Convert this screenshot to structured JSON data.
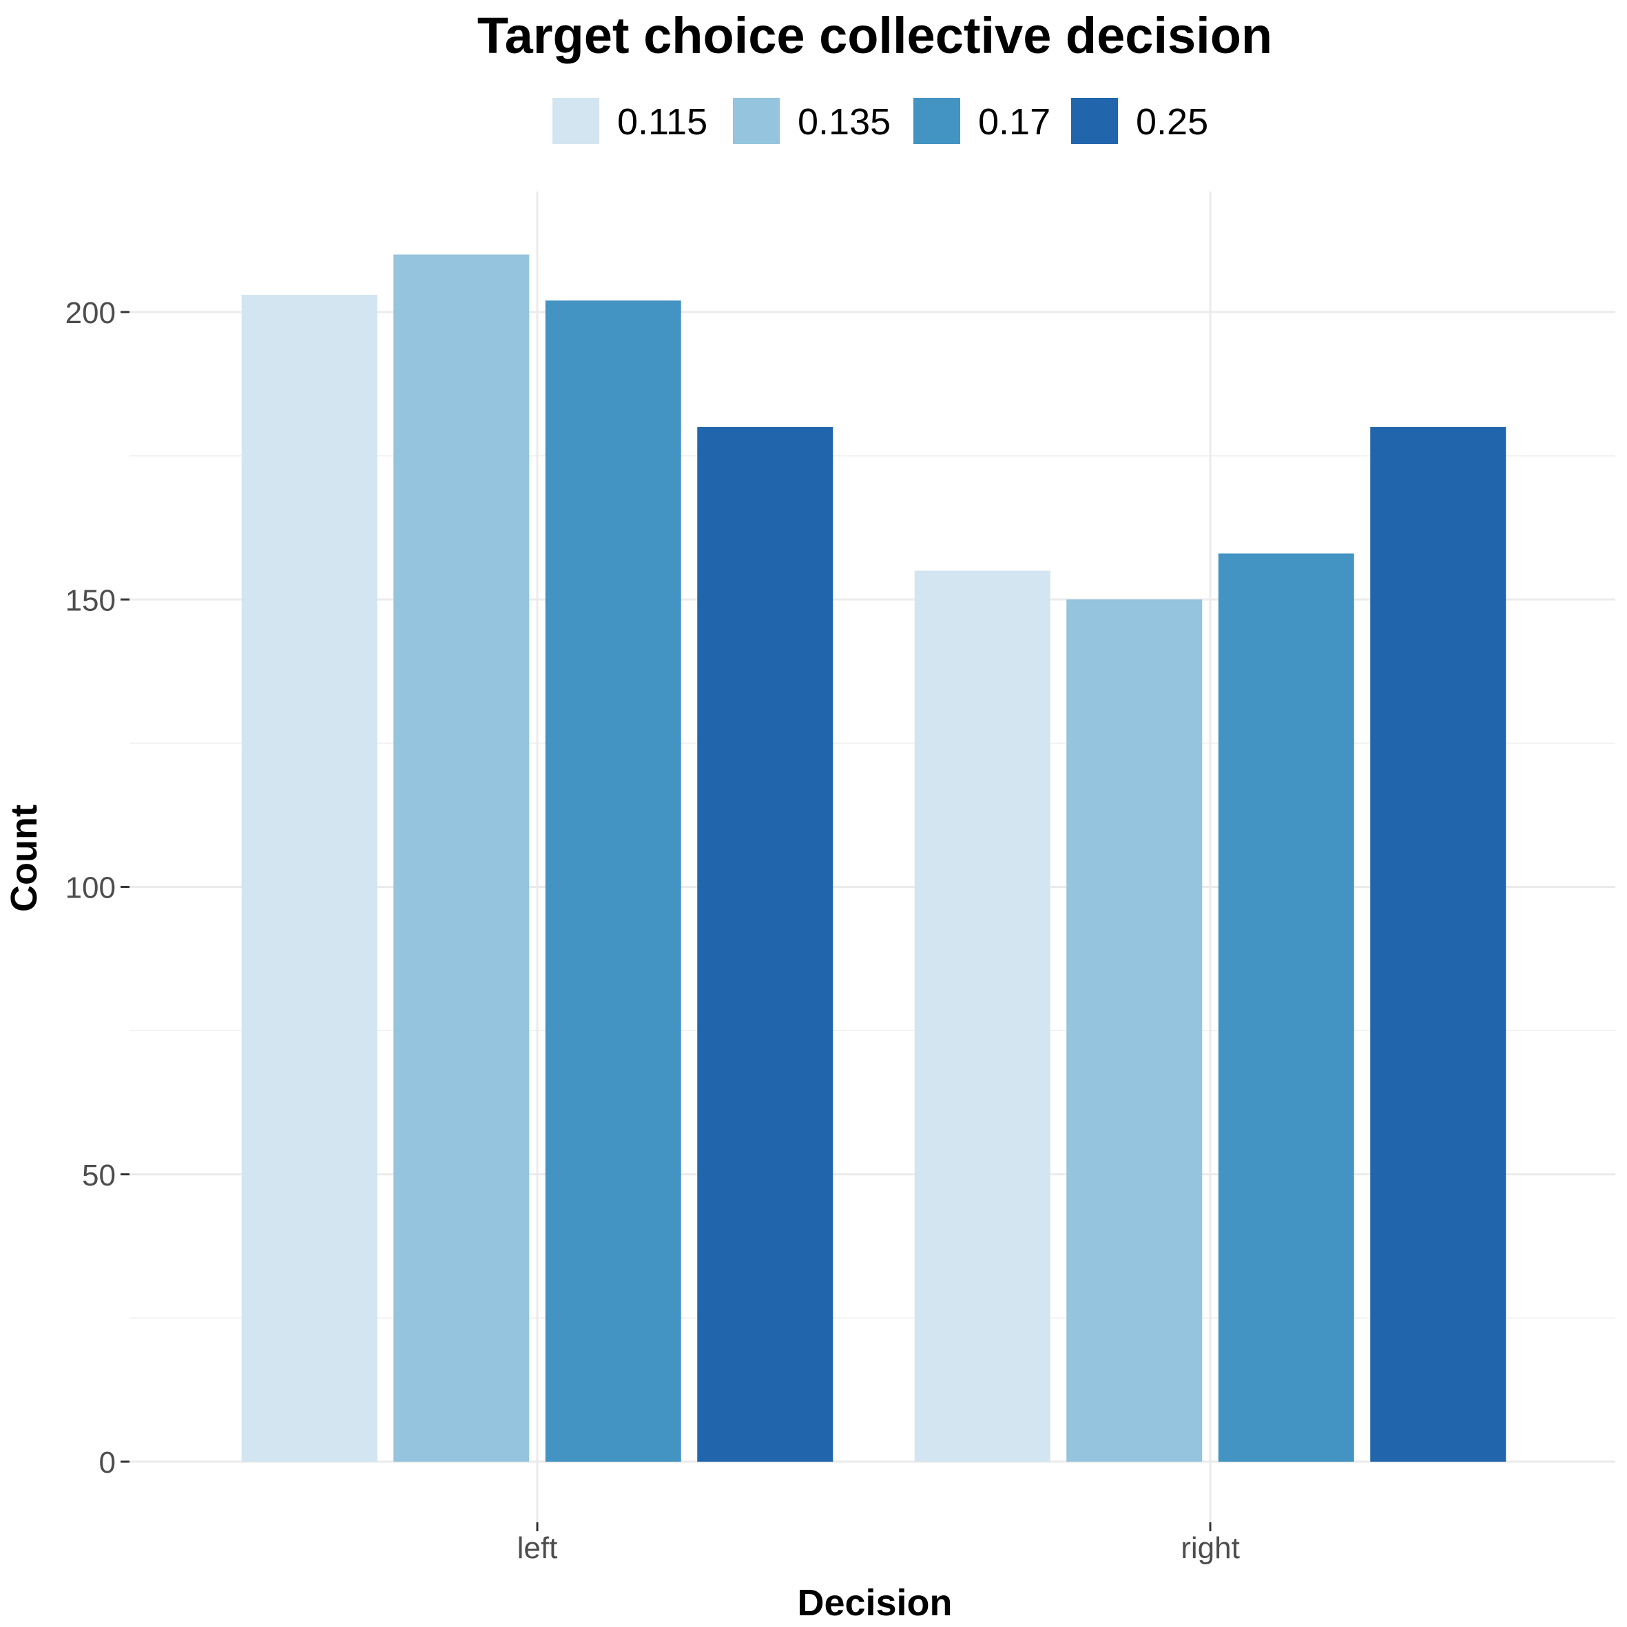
{
  "chart_data": {
    "type": "bar",
    "title": "Target choice collective decision",
    "xlabel": "Decision",
    "ylabel": "Count",
    "categories": [
      "left",
      "right"
    ],
    "series": [
      {
        "name": "0.115",
        "color": "#d2e5f1",
        "values": [
          203,
          155
        ]
      },
      {
        "name": "0.135",
        "color": "#94c4de",
        "values": [
          210,
          150
        ]
      },
      {
        "name": "0.17",
        "color": "#4393c3",
        "values": [
          202,
          158
        ]
      },
      {
        "name": "0.25",
        "color": "#2166ac",
        "values": [
          180,
          180
        ]
      }
    ],
    "y_ticks": [
      "0",
      "50",
      "100",
      "150",
      "200"
    ],
    "ylim": [
      0,
      220
    ],
    "legend_position": "top",
    "grid": true
  }
}
